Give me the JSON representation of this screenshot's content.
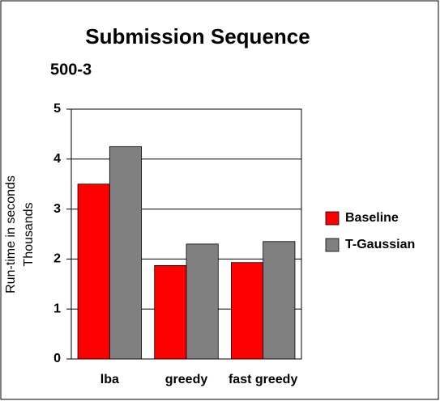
{
  "chart_data": {
    "type": "bar",
    "title": "Submission Sequence",
    "subtitle": "500-3",
    "y_label": "Run-time in seconds",
    "y_label_unit": "Thousands",
    "categories": [
      "lba",
      "greedy",
      "fast greedy"
    ],
    "series": [
      {
        "name": "Baseline",
        "color": "#ff0000",
        "values": [
          3.5,
          1.87,
          1.93
        ]
      },
      {
        "name": "T-Gaussian",
        "color": "#808080",
        "values": [
          4.25,
          2.3,
          2.35
        ]
      }
    ],
    "ylim": [
      0,
      5
    ],
    "yticks": [
      0,
      1,
      2,
      3,
      4,
      5
    ],
    "grid": true,
    "legend": "right"
  }
}
